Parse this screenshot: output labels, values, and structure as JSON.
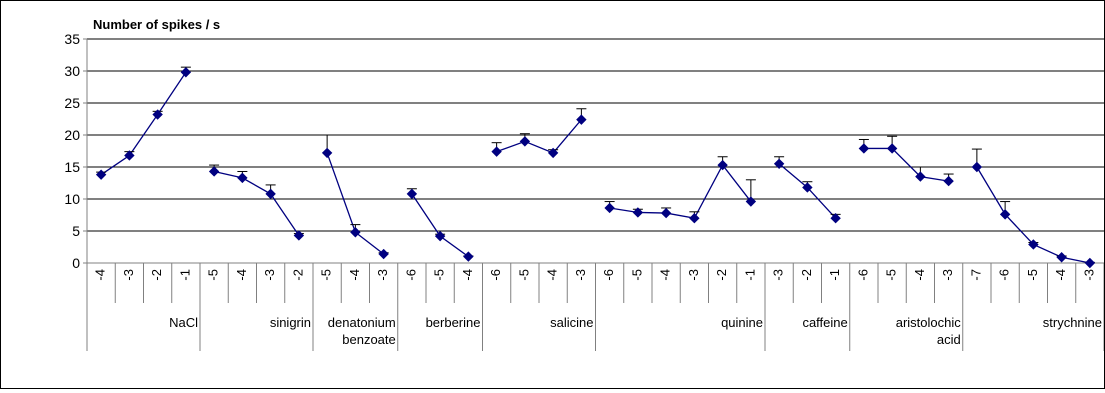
{
  "chart_data": {
    "type": "line",
    "title": "Number of spikes / s",
    "xlabel": "",
    "ylabel": "",
    "ylim": [
      0,
      35
    ],
    "yticks": [
      0,
      5,
      10,
      15,
      20,
      25,
      30,
      35
    ],
    "grid": true,
    "legend": "none",
    "colors": {
      "series": "#000080",
      "grid": "#000000",
      "axis": "#808080"
    },
    "groups": [
      {
        "name": "NaCl",
        "x": [
          "-4",
          "-3",
          "-2",
          "-1"
        ],
        "y": [
          13.8,
          16.8,
          23.2,
          29.8
        ],
        "err": [
          0.4,
          0.6,
          0.5,
          0.8
        ]
      },
      {
        "name": "sinigrin",
        "x": [
          "-5",
          "-4",
          "-3",
          "-2"
        ],
        "y": [
          14.3,
          13.3,
          10.8,
          4.3
        ],
        "err": [
          1.0,
          1.0,
          1.4,
          0.3
        ]
      },
      {
        "name": "denatonium benzoate",
        "x": [
          "-5",
          "-4",
          "-3"
        ],
        "y": [
          17.2,
          4.8,
          1.4
        ],
        "err": [
          2.8,
          1.2,
          0.2
        ]
      },
      {
        "name": "berberine",
        "x": [
          "-6",
          "-5",
          "-4"
        ],
        "y": [
          10.8,
          4.2,
          1.0
        ],
        "err": [
          0.8,
          0.3,
          0.1
        ]
      },
      {
        "name": "salicine",
        "x": [
          "-6",
          "-5",
          "-4",
          "-3"
        ],
        "y": [
          17.4,
          19.0,
          17.2,
          22.4
        ],
        "err": [
          1.4,
          1.2,
          0.5,
          1.7
        ]
      },
      {
        "name": "quinine",
        "x": [
          "-6",
          "-5",
          "-4",
          "-3",
          "-2",
          "-1"
        ],
        "y": [
          8.6,
          7.9,
          7.8,
          7.0,
          15.3,
          9.6
        ],
        "err": [
          1.0,
          0.5,
          0.8,
          1.0,
          1.3,
          3.4
        ]
      },
      {
        "name": "caffeine",
        "x": [
          "-3",
          "-2",
          "-1"
        ],
        "y": [
          15.5,
          11.8,
          7.0
        ],
        "err": [
          1.1,
          0.9,
          0.6
        ]
      },
      {
        "name": "aristolochic acid",
        "x": [
          "-6",
          "-5",
          "-4",
          "-3"
        ],
        "y": [
          17.9,
          17.9,
          13.5,
          12.8
        ],
        "err": [
          1.4,
          1.9,
          1.5,
          1.1
        ]
      },
      {
        "name": "strychnine",
        "x": [
          "-7",
          "-6",
          "-5",
          "-4",
          "-3"
        ],
        "y": [
          15.0,
          7.6,
          2.9,
          0.9,
          0.0
        ],
        "err": [
          2.8,
          2.0,
          0.3,
          0.2,
          0.1
        ]
      }
    ],
    "group_labels": [
      [
        "NaCl"
      ],
      [
        "sinigrin"
      ],
      [
        "denatonium",
        "benzoate"
      ],
      [
        "berberine"
      ],
      [
        "salicine"
      ],
      [
        "quinine"
      ],
      [
        "caffeine"
      ],
      [
        "aristolochic",
        "acid"
      ],
      [
        "strychnine"
      ]
    ]
  }
}
